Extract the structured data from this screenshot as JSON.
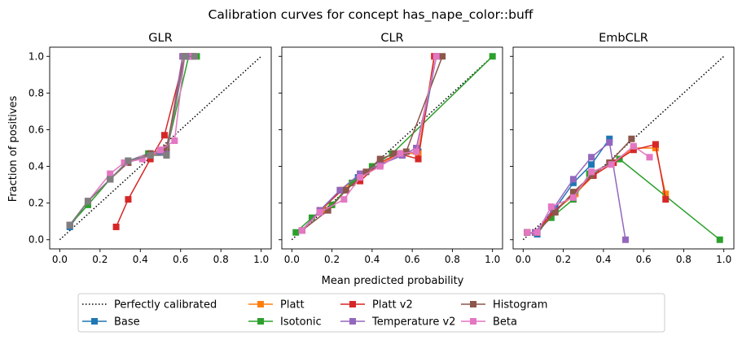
{
  "suptitle": "Calibration curves for concept has_nape_color::buff",
  "xlabel": "Mean predicted probability",
  "ylabel": "Fraction of positives",
  "colors": {
    "Base": "#1f77b4",
    "Platt": "#ff7f0e",
    "Isotonic": "#2ca02c",
    "Platt v2": "#d62728",
    "Temperature v2": "#9467bd",
    "Histogram": "#8c564b",
    "Beta": "#e377c2",
    "Gray": "#7f7f7f"
  },
  "legend": {
    "placement": "bottom-center",
    "entries": [
      {
        "label": "Perfectly calibrated",
        "key": "perfect"
      },
      {
        "label": "Base",
        "key": "Base"
      },
      {
        "label": "Platt",
        "key": "Platt"
      },
      {
        "label": "Isotonic",
        "key": "Isotonic"
      },
      {
        "label": "Platt v2",
        "key": "Platt v2"
      },
      {
        "label": "Temperature v2",
        "key": "Temperature v2"
      },
      {
        "label": "Histogram",
        "key": "Histogram"
      },
      {
        "label": "Beta",
        "key": "Beta"
      }
    ]
  },
  "chart_data": [
    {
      "type": "line",
      "title": "GLR",
      "xlim": [
        -0.05,
        1.05
      ],
      "ylim": [
        -0.05,
        1.05
      ],
      "xticks": [
        "0.0",
        "0.2",
        "0.4",
        "0.6",
        "0.8",
        "1.0"
      ],
      "yticks": [
        "0.0",
        "0.2",
        "0.4",
        "0.6",
        "0.8",
        "1.0"
      ],
      "series": [
        {
          "name": "Base",
          "x": [
            0.05,
            0.14,
            0.25,
            0.34,
            0.45,
            0.53,
            0.62,
            0.66
          ],
          "y": [
            0.07,
            0.21,
            0.33,
            0.43,
            0.46,
            0.47,
            1.0,
            1.0
          ]
        },
        {
          "name": "Platt",
          "x": [
            0.05,
            0.14,
            0.25,
            0.34,
            0.45,
            0.53,
            0.61,
            0.66
          ],
          "y": [
            0.08,
            0.21,
            0.33,
            0.43,
            0.46,
            0.48,
            1.0,
            1.0
          ]
        },
        {
          "name": "Isotonic",
          "x": [
            0.05,
            0.14,
            0.25,
            0.34,
            0.44,
            0.53,
            0.64,
            0.68
          ],
          "y": [
            0.08,
            0.19,
            0.33,
            0.43,
            0.47,
            0.48,
            1.0,
            1.0
          ]
        },
        {
          "name": "Platt v2",
          "x": [
            0.28,
            0.34,
            0.45,
            0.52,
            0.62,
            0.65
          ],
          "y": [
            0.07,
            0.22,
            0.44,
            0.57,
            1.0,
            1.0
          ]
        },
        {
          "name": "Temperature v2",
          "x": [
            0.05,
            0.14,
            0.25,
            0.34,
            0.45,
            0.53,
            0.61,
            0.65
          ],
          "y": [
            0.08,
            0.21,
            0.33,
            0.43,
            0.47,
            0.47,
            1.0,
            1.0
          ]
        },
        {
          "name": "Histogram",
          "x": [
            0.05,
            0.14,
            0.25,
            0.34,
            0.45,
            0.53,
            0.62,
            0.66
          ],
          "y": [
            0.08,
            0.21,
            0.33,
            0.42,
            0.47,
            0.5,
            1.0,
            1.0
          ]
        },
        {
          "name": "Beta",
          "x": [
            0.05,
            0.14,
            0.25,
            0.32,
            0.41,
            0.5,
            0.57,
            0.62,
            0.66
          ],
          "y": [
            0.08,
            0.21,
            0.36,
            0.42,
            0.44,
            0.49,
            0.54,
            1.0,
            1.0
          ]
        },
        {
          "name": "",
          "color_key": "Gray",
          "x": [
            0.05,
            0.14,
            0.25,
            0.34,
            0.45,
            0.53,
            0.62,
            0.67
          ],
          "y": [
            0.08,
            0.21,
            0.33,
            0.43,
            0.46,
            0.46,
            1.0,
            1.0
          ]
        }
      ]
    },
    {
      "type": "line",
      "title": "CLR",
      "xlim": [
        -0.05,
        1.05
      ],
      "ylim": [
        -0.05,
        1.05
      ],
      "xticks": [
        "0.0",
        "0.2",
        "0.4",
        "0.6",
        "0.8",
        "1.0"
      ],
      "yticks": [
        "0.0",
        "0.2",
        "0.4",
        "0.6",
        "0.8",
        "1.0"
      ],
      "series": [
        {
          "name": "Base",
          "x": [
            0.05,
            0.14,
            0.24,
            0.33,
            0.44,
            0.55,
            0.63,
            0.72
          ],
          "y": [
            0.05,
            0.16,
            0.27,
            0.34,
            0.41,
            0.46,
            0.48,
            1.0
          ]
        },
        {
          "name": "Platt",
          "x": [
            0.05,
            0.15,
            0.24,
            0.34,
            0.44,
            0.54,
            0.63,
            0.71
          ],
          "y": [
            0.05,
            0.16,
            0.27,
            0.34,
            0.41,
            0.47,
            0.47,
            1.0
          ]
        },
        {
          "name": "Isotonic",
          "x": [
            0.02,
            0.1,
            0.2,
            0.3,
            0.4,
            0.5,
            1.0
          ],
          "y": [
            0.04,
            0.12,
            0.19,
            0.31,
            0.4,
            0.47,
            1.0
          ]
        },
        {
          "name": "Platt v2",
          "x": [
            0.05,
            0.14,
            0.25,
            0.34,
            0.44,
            0.53,
            0.63,
            0.71
          ],
          "y": [
            0.05,
            0.16,
            0.27,
            0.32,
            0.42,
            0.47,
            0.44,
            1.0
          ]
        },
        {
          "name": "Temperature v2",
          "x": [
            0.05,
            0.14,
            0.24,
            0.34,
            0.44,
            0.55,
            0.62,
            0.72
          ],
          "y": [
            0.05,
            0.16,
            0.27,
            0.36,
            0.41,
            0.46,
            0.5,
            1.0
          ]
        },
        {
          "name": "Histogram",
          "x": [
            0.05,
            0.18,
            0.27,
            0.37,
            0.44,
            0.51,
            0.57,
            0.75
          ],
          "y": [
            0.05,
            0.16,
            0.27,
            0.37,
            0.44,
            0.47,
            0.48,
            1.0
          ]
        },
        {
          "name": "Beta",
          "x": [
            0.05,
            0.14,
            0.26,
            0.34,
            0.44,
            0.54,
            0.62,
            0.72
          ],
          "y": [
            0.05,
            0.15,
            0.22,
            0.34,
            0.4,
            0.47,
            0.48,
            1.0
          ]
        }
      ]
    },
    {
      "type": "line",
      "title": "EmbCLR",
      "xlim": [
        -0.05,
        1.05
      ],
      "ylim": [
        -0.05,
        1.05
      ],
      "xticks": [
        "0.0",
        "0.2",
        "0.4",
        "0.6",
        "0.8",
        "1.0"
      ],
      "yticks": [
        "0.0",
        "0.2",
        "0.4",
        "0.6",
        "0.8",
        "1.0"
      ],
      "series": [
        {
          "name": "Base",
          "x": [
            0.02,
            0.07,
            0.16,
            0.25,
            0.34,
            0.43
          ],
          "y": [
            0.04,
            0.03,
            0.17,
            0.31,
            0.41,
            0.55
          ]
        },
        {
          "name": "Platt",
          "x": [
            0.02,
            0.07,
            0.15,
            0.26,
            0.35,
            0.45,
            0.55,
            0.66,
            0.71
          ],
          "y": [
            0.04,
            0.04,
            0.15,
            0.25,
            0.35,
            0.42,
            0.5,
            0.5,
            0.25
          ]
        },
        {
          "name": "Isotonic",
          "x": [
            0.02,
            0.06,
            0.14,
            0.25,
            0.33,
            0.48,
            0.98
          ],
          "y": [
            0.04,
            0.04,
            0.12,
            0.22,
            0.36,
            0.44,
            0.0
          ]
        },
        {
          "name": "Platt v2",
          "x": [
            0.02,
            0.06,
            0.15,
            0.25,
            0.35,
            0.45,
            0.55,
            0.66,
            0.71
          ],
          "y": [
            0.04,
            0.04,
            0.15,
            0.25,
            0.35,
            0.42,
            0.49,
            0.52,
            0.22
          ]
        },
        {
          "name": "Temperature v2",
          "x": [
            0.02,
            0.06,
            0.15,
            0.25,
            0.34,
            0.43,
            0.51
          ],
          "y": [
            0.04,
            0.04,
            0.17,
            0.33,
            0.45,
            0.53,
            0.0
          ]
        },
        {
          "name": "Histogram",
          "x": [
            0.02,
            0.07,
            0.16,
            0.25,
            0.34,
            0.43,
            0.54
          ],
          "y": [
            0.04,
            0.04,
            0.15,
            0.26,
            0.35,
            0.42,
            0.55
          ]
        },
        {
          "name": "Beta",
          "x": [
            0.02,
            0.07,
            0.14,
            0.25,
            0.34,
            0.44,
            0.55,
            0.63
          ],
          "y": [
            0.04,
            0.04,
            0.18,
            0.23,
            0.37,
            0.41,
            0.51,
            0.45
          ]
        }
      ]
    }
  ]
}
